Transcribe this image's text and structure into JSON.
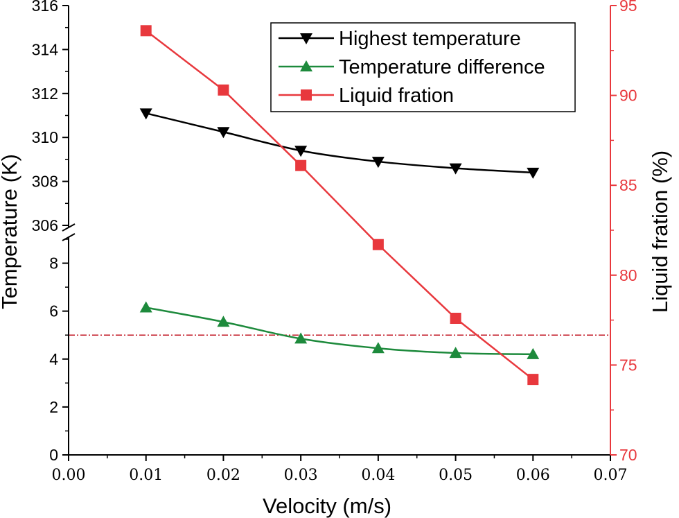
{
  "chart_data": {
    "type": "line",
    "x": [
      0.01,
      0.02,
      0.03,
      0.04,
      0.05,
      0.06
    ],
    "x_tick_labels": [
      "0.00",
      "0.01",
      "0.02",
      "0.03",
      "0.04",
      "0.05",
      "0.06",
      "0.07"
    ],
    "xlabel": "Velocity (m/s)",
    "xlim": [
      0.0,
      0.07
    ],
    "ylabel": "Temperature (K)",
    "y_left_upper": {
      "range": [
        306,
        316
      ],
      "ticks": [
        "306",
        "308",
        "310",
        "312",
        "314",
        "316"
      ]
    },
    "y_left_lower": {
      "range": [
        0,
        9
      ],
      "ticks": [
        "0",
        "2",
        "4",
        "6",
        "8"
      ]
    },
    "ylabel_right": "Liquid fration (%)",
    "y_right": {
      "range": [
        70,
        95
      ],
      "ticks": [
        "70",
        "75",
        "80",
        "85",
        "90",
        "95"
      ]
    },
    "reference_line": {
      "axis": "left-lower",
      "value": 5.0,
      "color": "#c0121f"
    },
    "series": [
      {
        "name": "Highest temperature",
        "axis": "left-upper",
        "color": "#000000",
        "marker": "triangle-down",
        "values": [
          311.1,
          310.25,
          309.4,
          308.9,
          308.6,
          308.4
        ]
      },
      {
        "name": "Temperature difference",
        "axis": "left-lower",
        "color": "#1d8a3c",
        "marker": "triangle-up",
        "values": [
          6.15,
          5.55,
          4.85,
          4.45,
          4.25,
          4.2
        ]
      },
      {
        "name": "Liquid fration",
        "axis": "right",
        "color": "#e8383d",
        "marker": "square",
        "values": [
          93.6,
          90.3,
          86.1,
          81.7,
          77.6,
          74.2
        ]
      }
    ],
    "legend_position": "top-right"
  }
}
